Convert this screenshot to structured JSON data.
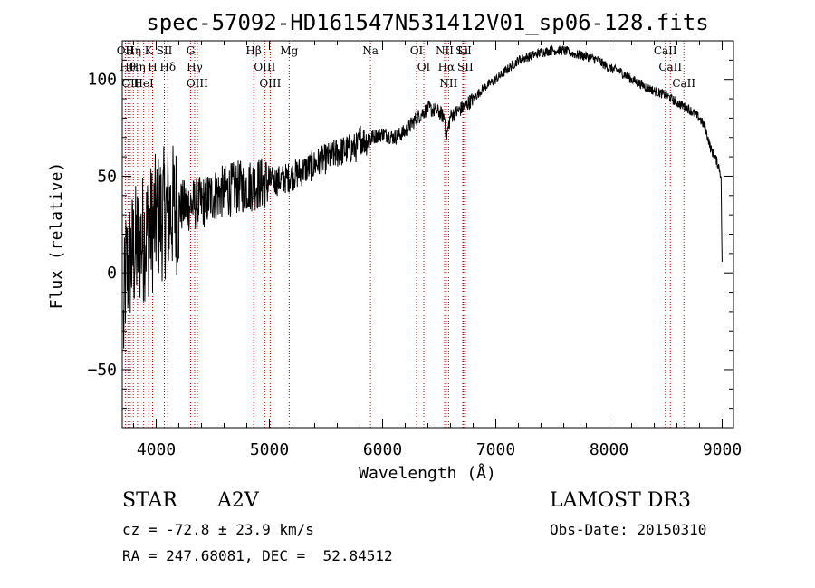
{
  "chart_data": {
    "type": "line",
    "title": "spec-57092-HD161547N531412V01_sp06-128.fits",
    "xlabel": "Wavelength (Å)",
    "ylabel": "Flux (relative)",
    "xlim": [
      3700,
      9100
    ],
    "ylim": [
      -80,
      120
    ],
    "xticks": [
      4000,
      5000,
      6000,
      7000,
      8000,
      9000
    ],
    "yticks": [
      -50,
      0,
      50,
      100
    ],
    "series": [
      {
        "name": "spectrum",
        "x": [
          3710,
          3730,
          3760,
          3800,
          3850,
          3900,
          3950,
          3980,
          4000,
          4050,
          4100,
          4150,
          4200,
          4300,
          4400,
          4500,
          4600,
          4700,
          4800,
          4900,
          5000,
          5100,
          5200,
          5300,
          5400,
          5500,
          5600,
          5700,
          5780,
          5800,
          5850,
          5900,
          6000,
          6100,
          6200,
          6300,
          6400,
          6500,
          6550,
          6563,
          6600,
          6700,
          6800,
          6900,
          7000,
          7100,
          7200,
          7300,
          7400,
          7500,
          7600,
          7700,
          7800,
          7900,
          8000,
          8100,
          8200,
          8300,
          8400,
          8500,
          8550,
          8600,
          8700,
          8800,
          8850,
          8900,
          8950,
          8970,
          8990,
          9000
        ],
        "y": [
          -30,
          0,
          5,
          10,
          15,
          20,
          22,
          25,
          28,
          30,
          32,
          33,
          34,
          35,
          36,
          40,
          42,
          44,
          45,
          46,
          47,
          48,
          50,
          53,
          56,
          59,
          62,
          64,
          65,
          70,
          68,
          70,
          72,
          70,
          73,
          80,
          85,
          83,
          80,
          70,
          81,
          85,
          90,
          96,
          100,
          105,
          110,
          112,
          114,
          115,
          115,
          113,
          112,
          110,
          106,
          104,
          100,
          97,
          94,
          92,
          90,
          88,
          85,
          80,
          75,
          64,
          58,
          55,
          50,
          0
        ]
      }
    ],
    "spectral_lines": [
      {
        "x": 3727,
        "label": "OII"
      },
      {
        "x": 3750,
        "label": "Hθ"
      },
      {
        "x": 3771,
        "label": "OII"
      },
      {
        "x": 3798,
        "label": "Hη"
      },
      {
        "x": 3835,
        "label": "Hη"
      },
      {
        "x": 3889,
        "label": "HeI"
      },
      {
        "x": 3934,
        "label": "K"
      },
      {
        "x": 3968,
        "label": "H"
      },
      {
        "x": 4072,
        "label": "SII"
      },
      {
        "x": 4102,
        "label": "Hδ"
      },
      {
        "x": 4304,
        "label": "G"
      },
      {
        "x": 4340,
        "label": "Hγ"
      },
      {
        "x": 4363,
        "label": "OIII"
      },
      {
        "x": 4861,
        "label": "Hβ"
      },
      {
        "x": 4959,
        "label": "OIII"
      },
      {
        "x": 5007,
        "label": "OIII"
      },
      {
        "x": 5175,
        "label": "Mg"
      },
      {
        "x": 5893,
        "label": "Na"
      },
      {
        "x": 6300,
        "label": "OI"
      },
      {
        "x": 6364,
        "label": "OI"
      },
      {
        "x": 6548,
        "label": "NII"
      },
      {
        "x": 6563,
        "label": "Hα"
      },
      {
        "x": 6583,
        "label": "NII"
      },
      {
        "x": 6708,
        "label": "Li"
      },
      {
        "x": 6716,
        "label": "SII"
      },
      {
        "x": 6731,
        "label": "SII"
      },
      {
        "x": 8498,
        "label": "CaII"
      },
      {
        "x": 8542,
        "label": "CaII"
      },
      {
        "x": 8662,
        "label": "CaII"
      }
    ]
  },
  "info": {
    "object_type": "STAR",
    "subclass": "A2V",
    "survey": "LAMOST DR3",
    "cz": "cz = -72.8 ± 23.9 km/s",
    "obs_date": "Obs-Date: 20150310",
    "coords": "RA = 247.68081, DEC =  52.84512"
  },
  "colors": {
    "line": "#000000",
    "marker": "#cc0000"
  }
}
